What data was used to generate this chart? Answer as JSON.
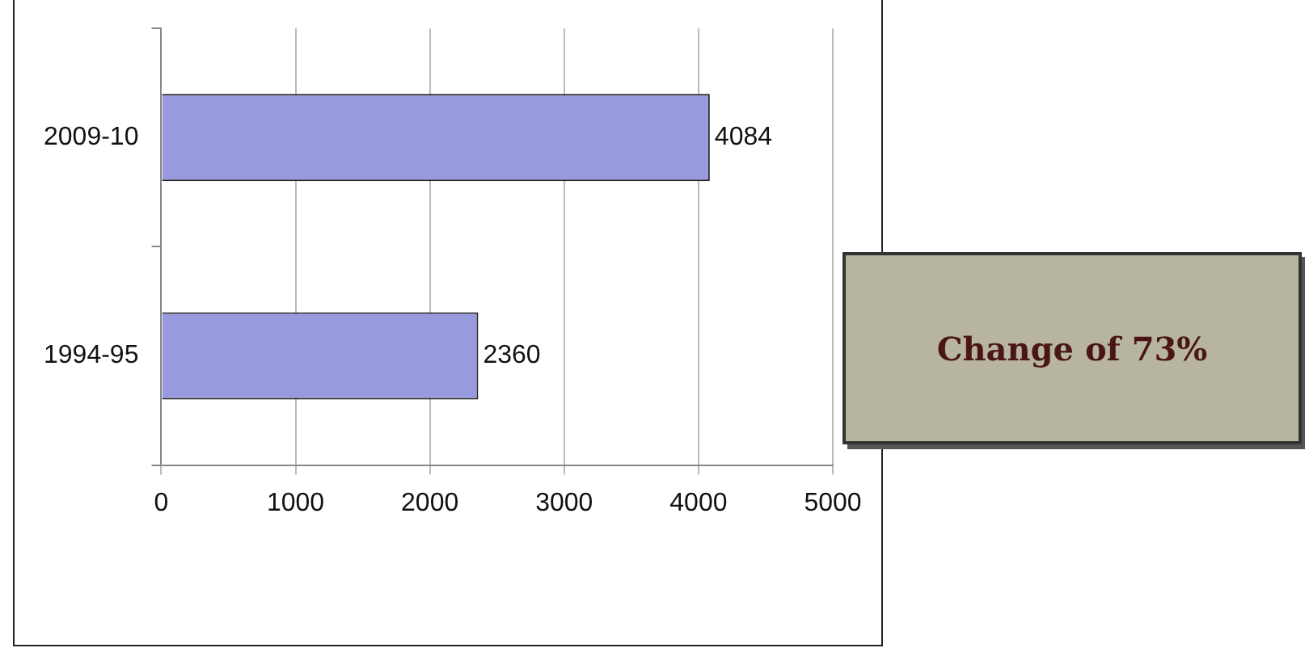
{
  "chart_data": {
    "type": "bar",
    "orientation": "horizontal",
    "categories": [
      "2009-10",
      "1994-95"
    ],
    "values": [
      4084,
      2360
    ],
    "color": "#9999dd",
    "xlim": [
      0,
      5000
    ],
    "xticks": [
      0,
      1000,
      2000,
      3000,
      4000,
      5000
    ],
    "grid": "x",
    "data_labels": true,
    "legend": false,
    "annotations": [
      "Change of 73%"
    ]
  }
}
